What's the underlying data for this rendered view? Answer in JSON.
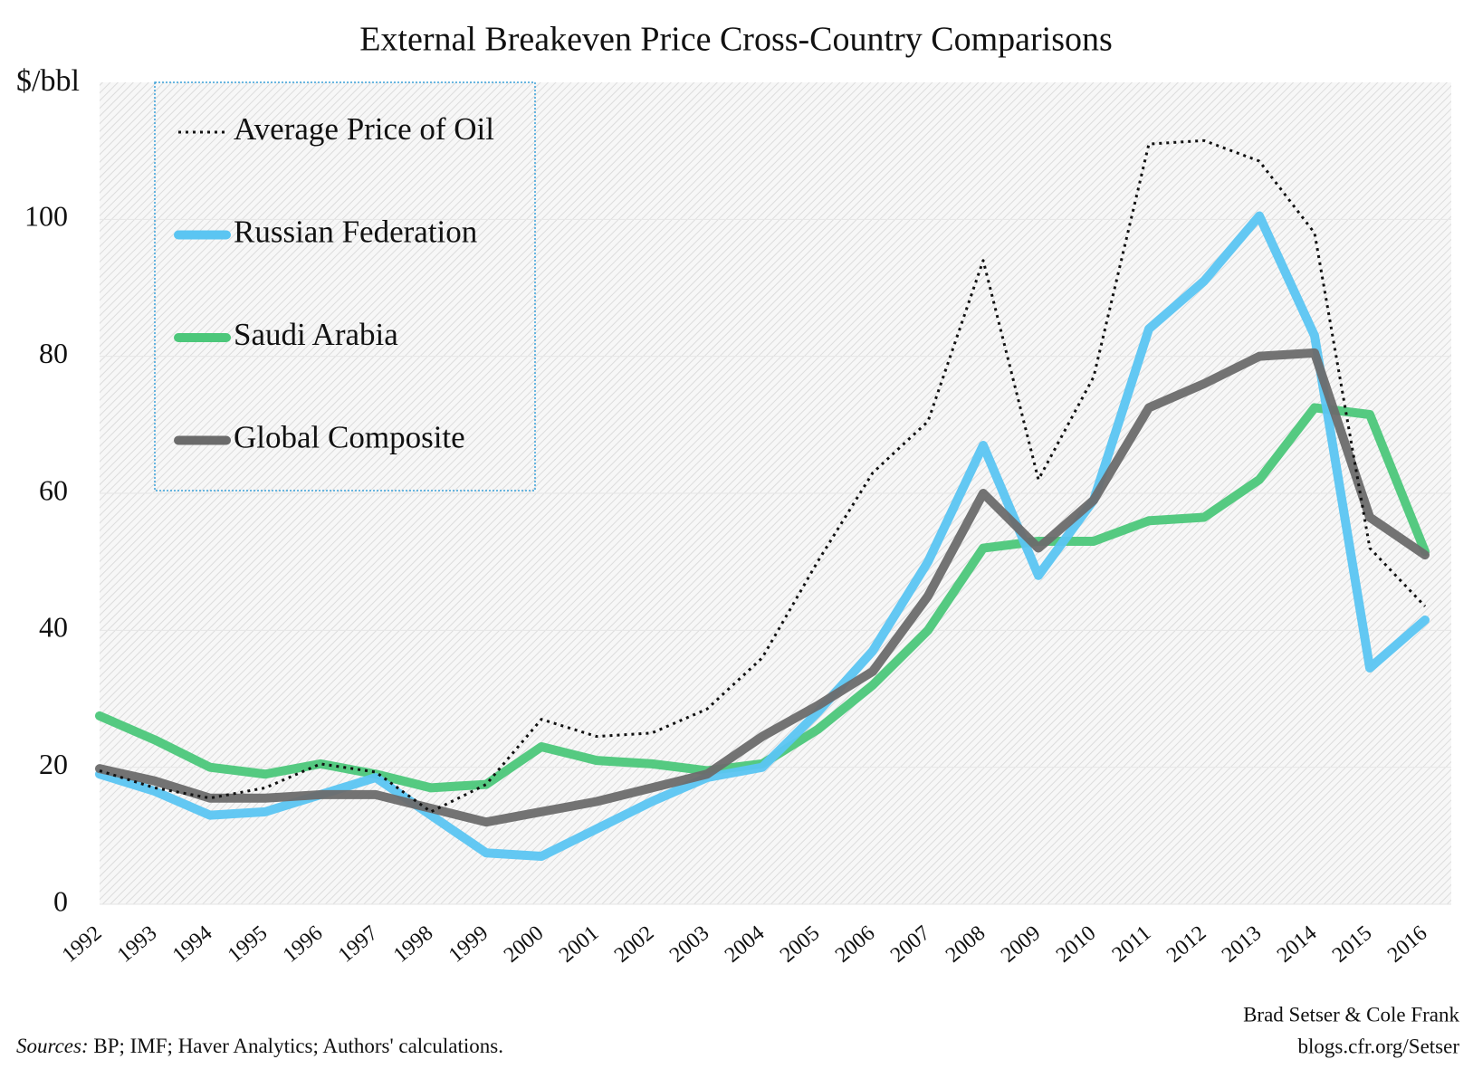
{
  "chart_data": {
    "type": "line",
    "title": "External Breakeven Price Cross-Country Comparisons",
    "y_label": "$/bbl",
    "categories": [
      "1992",
      "1993",
      "1994",
      "1995",
      "1996",
      "1997",
      "1998",
      "1999",
      "2000",
      "2001",
      "2002",
      "2003",
      "2004",
      "2005",
      "2006",
      "2007",
      "2008",
      "2009",
      "2010",
      "2011",
      "2012",
      "2013",
      "2014",
      "2015",
      "2016"
    ],
    "series": [
      {
        "name": "Average Price of Oil",
        "color": "#111111",
        "style": "dotted",
        "values": [
          19.5,
          17,
          15.5,
          17,
          20.5,
          19.3,
          13.5,
          17.5,
          27,
          24.5,
          25,
          28.5,
          36,
          50,
          63,
          70.5,
          94,
          62,
          77,
          111,
          111.5,
          108.5,
          98,
          52,
          43.5
        ]
      },
      {
        "name": "Russian Federation",
        "color": "#5bc5f2",
        "style": "solid",
        "values": [
          19,
          16.5,
          13,
          13.5,
          16,
          18.5,
          13,
          7.5,
          7,
          11,
          15,
          18.5,
          20,
          28,
          37,
          50,
          67,
          48,
          59,
          84,
          91,
          100.5,
          83,
          34.5,
          41.5
        ]
      },
      {
        "name": "Saudi Arabia",
        "color": "#4cc77a",
        "style": "solid",
        "values": [
          27.5,
          24,
          20,
          19,
          20.5,
          19,
          17,
          17.5,
          23,
          21,
          20.5,
          19.5,
          20.5,
          25.5,
          32,
          40,
          52,
          53,
          53,
          56,
          56.5,
          62,
          72.5,
          71.5,
          51.5
        ]
      },
      {
        "name": "Global Composite",
        "color": "#6b6b6b",
        "style": "solid",
        "values": [
          19.8,
          18,
          15.5,
          15.5,
          16,
          16,
          14,
          12,
          13.5,
          15,
          17,
          19,
          24.5,
          29,
          34,
          45,
          60,
          52,
          59,
          72.5,
          76,
          80,
          80.5,
          56.5,
          51
        ]
      }
    ],
    "ylim": [
      0,
      120
    ],
    "yticks": [
      0,
      20,
      40,
      60,
      80,
      100
    ],
    "grid": true,
    "legend": "top-left",
    "source_label": "Sources:",
    "source": "BP; IMF; Haver Analytics; Authors' calculations.",
    "credits": [
      "Brad Setser & Cole Frank",
      "blogs.cfr.org/Setser"
    ]
  }
}
